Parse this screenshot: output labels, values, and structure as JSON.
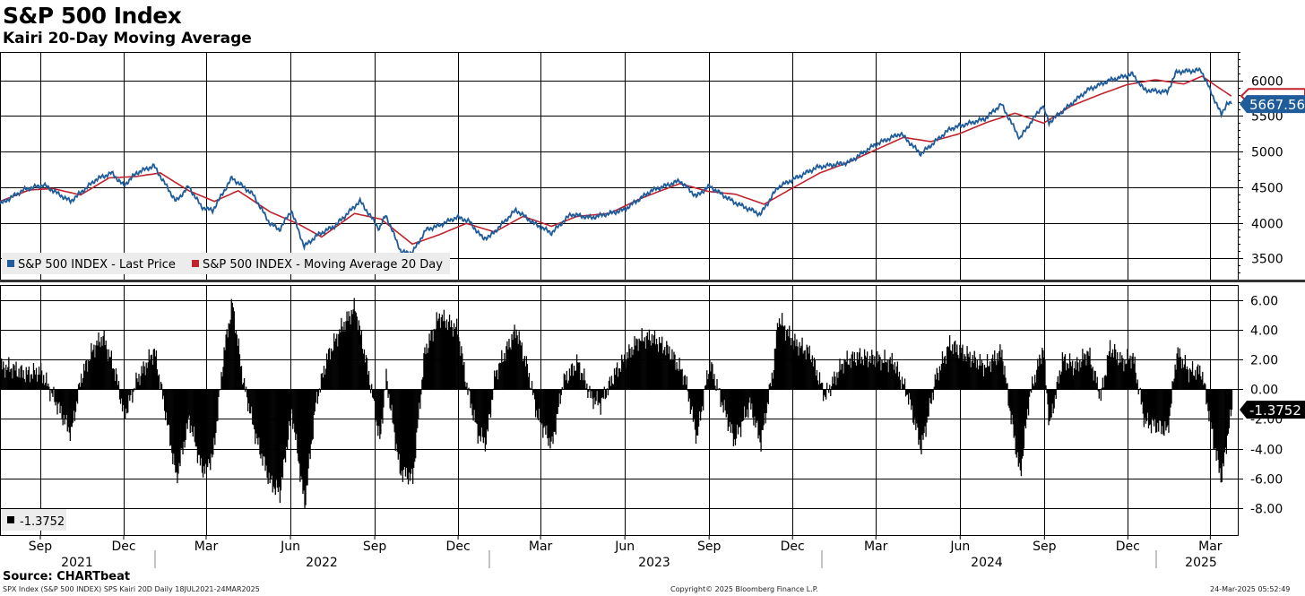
{
  "header": {
    "title": "S&P 500 Index",
    "subtitle": "Kairi 20-Day Moving Average"
  },
  "footer": {
    "source": "Source: CHARTbeat",
    "left": "SPX Index (S&P 500 INDEX) SPS Kairi 20D  Daily 18JUL2021-24MAR2025",
    "center": "Copyright© 2025 Bloomberg Finance L.P.",
    "right": "24-Mar-2025 05:52:49"
  },
  "colors": {
    "price": "#1f5c99",
    "ma": "#c0232c",
    "bars": "#000000"
  },
  "chart_data": [
    {
      "type": "line",
      "panel": "price",
      "y_ticks": [
        3500,
        4000,
        4500,
        5000,
        5500,
        6000
      ],
      "ylim": [
        3200,
        6400
      ],
      "grid": true,
      "legend_position": "bottom-left",
      "last_value_label": "5667.56",
      "series": [
        {
          "name": "S&P 500 INDEX - Last Price",
          "color": "#1f5c99",
          "points": [
            [
              "2021-07-19",
              4260
            ],
            [
              "2021-08-15",
              4470
            ],
            [
              "2021-09-05",
              4530
            ],
            [
              "2021-10-04",
              4300
            ],
            [
              "2021-11-01",
              4610
            ],
            [
              "2021-11-18",
              4700
            ],
            [
              "2021-12-01",
              4520
            ],
            [
              "2021-12-15",
              4700
            ],
            [
              "2022-01-03",
              4800
            ],
            [
              "2022-01-27",
              4300
            ],
            [
              "2022-02-10",
              4510
            ],
            [
              "2022-02-24",
              4220
            ],
            [
              "2022-03-08",
              4170
            ],
            [
              "2022-03-29",
              4630
            ],
            [
              "2022-04-21",
              4400
            ],
            [
              "2022-05-09",
              4000
            ],
            [
              "2022-05-20",
              3900
            ],
            [
              "2022-06-02",
              4170
            ],
            [
              "2022-06-16",
              3666
            ],
            [
              "2022-07-01",
              3830
            ],
            [
              "2022-07-20",
              3960
            ],
            [
              "2022-08-16",
              4305
            ],
            [
              "2022-09-06",
              3910
            ],
            [
              "2022-09-13",
              4110
            ],
            [
              "2022-09-30",
              3585
            ],
            [
              "2022-10-12",
              3577
            ],
            [
              "2022-10-27",
              3900
            ],
            [
              "2022-11-10",
              3960
            ],
            [
              "2022-11-30",
              4080
            ],
            [
              "2022-12-13",
              4020
            ],
            [
              "2022-12-28",
              3780
            ],
            [
              "2023-01-05",
              3810
            ],
            [
              "2023-02-02",
              4180
            ],
            [
              "2023-02-22",
              3990
            ],
            [
              "2023-03-13",
              3855
            ],
            [
              "2023-04-03",
              4120
            ],
            [
              "2023-04-25",
              4070
            ],
            [
              "2023-05-31",
              4180
            ],
            [
              "2023-06-30",
              4450
            ],
            [
              "2023-07-31",
              4590
            ],
            [
              "2023-08-18",
              4370
            ],
            [
              "2023-09-01",
              4515
            ],
            [
              "2023-09-28",
              4290
            ],
            [
              "2023-10-27",
              4117
            ],
            [
              "2023-11-15",
              4500
            ],
            [
              "2023-12-28",
              4780
            ],
            [
              "2024-01-31",
              4845
            ],
            [
              "2024-02-29",
              5096
            ],
            [
              "2024-03-28",
              5254
            ],
            [
              "2024-04-19",
              4967
            ],
            [
              "2024-05-21",
              5321
            ],
            [
              "2024-06-28",
              5460
            ],
            [
              "2024-07-16",
              5667
            ],
            [
              "2024-08-05",
              5186
            ],
            [
              "2024-08-30",
              5648
            ],
            [
              "2024-09-06",
              5408
            ],
            [
              "2024-10-18",
              5864
            ],
            [
              "2024-11-11",
              6001
            ],
            [
              "2024-12-06",
              6090
            ],
            [
              "2024-12-19",
              5867
            ],
            [
              "2025-01-13",
              5836
            ],
            [
              "2025-01-23",
              6119
            ],
            [
              "2025-02-19",
              6144
            ],
            [
              "2025-03-13",
              5521
            ],
            [
              "2025-03-19",
              5675
            ],
            [
              "2025-03-24",
              5667.56
            ]
          ]
        },
        {
          "name": "S&P 500 INDEX - Moving Average 20 Day",
          "color": "#c0232c",
          "points": [
            [
              "2021-07-19",
              4300
            ],
            [
              "2021-08-20",
              4460
            ],
            [
              "2021-09-15",
              4480
            ],
            [
              "2021-10-15",
              4390
            ],
            [
              "2021-11-15",
              4630
            ],
            [
              "2021-12-15",
              4650
            ],
            [
              "2022-01-10",
              4700
            ],
            [
              "2022-02-10",
              4450
            ],
            [
              "2022-03-10",
              4300
            ],
            [
              "2022-04-05",
              4450
            ],
            [
              "2022-05-10",
              4150
            ],
            [
              "2022-06-10",
              3980
            ],
            [
              "2022-07-05",
              3800
            ],
            [
              "2022-08-10",
              4130
            ],
            [
              "2022-09-08",
              4050
            ],
            [
              "2022-10-12",
              3700
            ],
            [
              "2022-11-10",
              3830
            ],
            [
              "2022-12-10",
              3990
            ],
            [
              "2023-01-10",
              3870
            ],
            [
              "2023-02-10",
              4090
            ],
            [
              "2023-03-13",
              3950
            ],
            [
              "2023-04-10",
              4090
            ],
            [
              "2023-05-15",
              4130
            ],
            [
              "2023-06-20",
              4350
            ],
            [
              "2023-07-31",
              4550
            ],
            [
              "2023-08-31",
              4440
            ],
            [
              "2023-09-30",
              4400
            ],
            [
              "2023-10-31",
              4260
            ],
            [
              "2023-11-30",
              4480
            ],
            [
              "2023-12-31",
              4700
            ],
            [
              "2024-01-31",
              4850
            ],
            [
              "2024-02-29",
              5020
            ],
            [
              "2024-03-31",
              5200
            ],
            [
              "2024-04-30",
              5140
            ],
            [
              "2024-05-31",
              5250
            ],
            [
              "2024-06-30",
              5410
            ],
            [
              "2024-07-31",
              5540
            ],
            [
              "2024-08-31",
              5400
            ],
            [
              "2024-09-30",
              5640
            ],
            [
              "2024-10-31",
              5800
            ],
            [
              "2024-11-30",
              5940
            ],
            [
              "2024-12-31",
              6010
            ],
            [
              "2025-01-31",
              5950
            ],
            [
              "2025-02-20",
              6060
            ],
            [
              "2025-03-10",
              5900
            ],
            [
              "2025-03-24",
              5780
            ]
          ]
        }
      ]
    },
    {
      "type": "bar",
      "panel": "kairi",
      "y_ticks": [
        -8,
        -6,
        -4,
        -2,
        0,
        2,
        4,
        6
      ],
      "y_tick_labels": [
        "-8.00",
        "-6.00",
        "-4.00",
        "-2.00",
        "0.00",
        "2.00",
        "4.00",
        "6.00"
      ],
      "ylim": [
        -9.8,
        7.0
      ],
      "grid": true,
      "legend_position": "bottom-left",
      "legend_label": "-1.3752",
      "last_value_label": "-1.3752",
      "series": [
        {
          "name": "Kairi 20-Day",
          "color": "#000000",
          "points": [
            [
              "2021-07-19",
              1.5
            ],
            [
              "2021-08-01",
              1.4
            ],
            [
              "2021-08-15",
              1.0
            ],
            [
              "2021-09-01",
              1.2
            ],
            [
              "2021-09-20",
              -1.2
            ],
            [
              "2021-10-04",
              -3.0
            ],
            [
              "2021-10-15",
              0.8
            ],
            [
              "2021-10-29",
              2.8
            ],
            [
              "2021-11-08",
              3.5
            ],
            [
              "2021-11-22",
              1.0
            ],
            [
              "2021-12-01",
              -1.8
            ],
            [
              "2021-12-15",
              0.6
            ],
            [
              "2022-01-03",
              2.6
            ],
            [
              "2022-01-15",
              -1.5
            ],
            [
              "2022-01-27",
              -6.0
            ],
            [
              "2022-02-10",
              -2.0
            ],
            [
              "2022-02-24",
              -5.5
            ],
            [
              "2022-03-08",
              -4.5
            ],
            [
              "2022-03-20",
              2.5
            ],
            [
              "2022-03-29",
              5.8
            ],
            [
              "2022-04-10",
              0.5
            ],
            [
              "2022-04-25",
              -3.5
            ],
            [
              "2022-05-09",
              -6.2
            ],
            [
              "2022-05-20",
              -7.0
            ],
            [
              "2022-06-02",
              -1.5
            ],
            [
              "2022-06-16",
              -7.8
            ],
            [
              "2022-06-28",
              -1.0
            ],
            [
              "2022-07-10",
              2.0
            ],
            [
              "2022-07-25",
              4.0
            ],
            [
              "2022-08-10",
              5.5
            ],
            [
              "2022-08-25",
              1.0
            ],
            [
              "2022-09-06",
              -3.5
            ],
            [
              "2022-09-13",
              0.8
            ],
            [
              "2022-09-28",
              -5.5
            ],
            [
              "2022-10-12",
              -6.0
            ],
            [
              "2022-10-25",
              2.5
            ],
            [
              "2022-11-10",
              4.9
            ],
            [
              "2022-11-30",
              4.0
            ],
            [
              "2022-12-10",
              0.2
            ],
            [
              "2022-12-22",
              -3.0
            ],
            [
              "2022-12-31",
              -3.6
            ],
            [
              "2023-01-10",
              1.0
            ],
            [
              "2023-01-25",
              3.0
            ],
            [
              "2023-02-02",
              4.0
            ],
            [
              "2023-02-15",
              1.2
            ],
            [
              "2023-02-25",
              -1.8
            ],
            [
              "2023-03-13",
              -3.8
            ],
            [
              "2023-03-25",
              0.5
            ],
            [
              "2023-04-10",
              1.8
            ],
            [
              "2023-04-25",
              -0.6
            ],
            [
              "2023-05-05",
              -1.0
            ],
            [
              "2023-05-20",
              1.0
            ],
            [
              "2023-06-15",
              3.3
            ],
            [
              "2023-06-30",
              3.5
            ],
            [
              "2023-07-20",
              2.5
            ],
            [
              "2023-08-05",
              0.8
            ],
            [
              "2023-08-18",
              -3.3
            ],
            [
              "2023-09-01",
              1.8
            ],
            [
              "2023-09-15",
              -1.0
            ],
            [
              "2023-09-28",
              -3.5
            ],
            [
              "2023-10-15",
              -1.0
            ],
            [
              "2023-10-27",
              -3.6
            ],
            [
              "2023-11-10",
              1.6
            ],
            [
              "2023-11-15",
              4.8
            ],
            [
              "2023-12-01",
              3.2
            ],
            [
              "2023-12-20",
              2.4
            ],
            [
              "2024-01-05",
              -0.5
            ],
            [
              "2024-01-25",
              1.8
            ],
            [
              "2024-02-10",
              2.2
            ],
            [
              "2024-03-01",
              2.0
            ],
            [
              "2024-03-20",
              1.8
            ],
            [
              "2024-04-05",
              -0.5
            ],
            [
              "2024-04-19",
              -4.0
            ],
            [
              "2024-05-05",
              0.8
            ],
            [
              "2024-05-20",
              3.0
            ],
            [
              "2024-06-10",
              2.2
            ],
            [
              "2024-06-28",
              1.5
            ],
            [
              "2024-07-16",
              2.5
            ],
            [
              "2024-07-25",
              -1.5
            ],
            [
              "2024-08-05",
              -5.8
            ],
            [
              "2024-08-15",
              -0.5
            ],
            [
              "2024-08-30",
              2.8
            ],
            [
              "2024-09-06",
              -2.5
            ],
            [
              "2024-09-20",
              2.0
            ],
            [
              "2024-10-05",
              1.5
            ],
            [
              "2024-10-18",
              2.5
            ],
            [
              "2024-11-01",
              -0.5
            ],
            [
              "2024-11-11",
              2.8
            ],
            [
              "2024-11-25",
              1.8
            ],
            [
              "2024-12-06",
              2.2
            ],
            [
              "2024-12-19",
              -2.2
            ],
            [
              "2025-01-02",
              -2.5
            ],
            [
              "2025-01-13",
              -2.8
            ],
            [
              "2025-01-23",
              2.5
            ],
            [
              "2025-02-05",
              1.2
            ],
            [
              "2025-02-19",
              1.2
            ],
            [
              "2025-02-28",
              -2.0
            ],
            [
              "2025-03-07",
              -4.5
            ],
            [
              "2025-03-13",
              -6.0
            ],
            [
              "2025-03-19",
              -3.2
            ],
            [
              "2025-03-24",
              -1.3752
            ]
          ]
        }
      ]
    }
  ],
  "x_axis": {
    "month_labels": [
      {
        "date": "2021-09-01",
        "label": "Sep"
      },
      {
        "date": "2021-12-01",
        "label": "Dec"
      },
      {
        "date": "2022-03-01",
        "label": "Mar"
      },
      {
        "date": "2022-06-01",
        "label": "Jun"
      },
      {
        "date": "2022-09-01",
        "label": "Sep"
      },
      {
        "date": "2022-12-01",
        "label": "Dec"
      },
      {
        "date": "2023-03-01",
        "label": "Mar"
      },
      {
        "date": "2023-06-01",
        "label": "Jun"
      },
      {
        "date": "2023-09-01",
        "label": "Sep"
      },
      {
        "date": "2023-12-01",
        "label": "Dec"
      },
      {
        "date": "2024-03-01",
        "label": "Mar"
      },
      {
        "date": "2024-06-01",
        "label": "Jun"
      },
      {
        "date": "2024-09-01",
        "label": "Sep"
      },
      {
        "date": "2024-12-01",
        "label": "Dec"
      },
      {
        "date": "2025-03-01",
        "label": "Mar"
      }
    ],
    "year_labels": [
      "2021",
      "2022",
      "2023",
      "2024",
      "2025"
    ],
    "range": [
      "2021-07-19",
      "2025-03-31"
    ]
  }
}
